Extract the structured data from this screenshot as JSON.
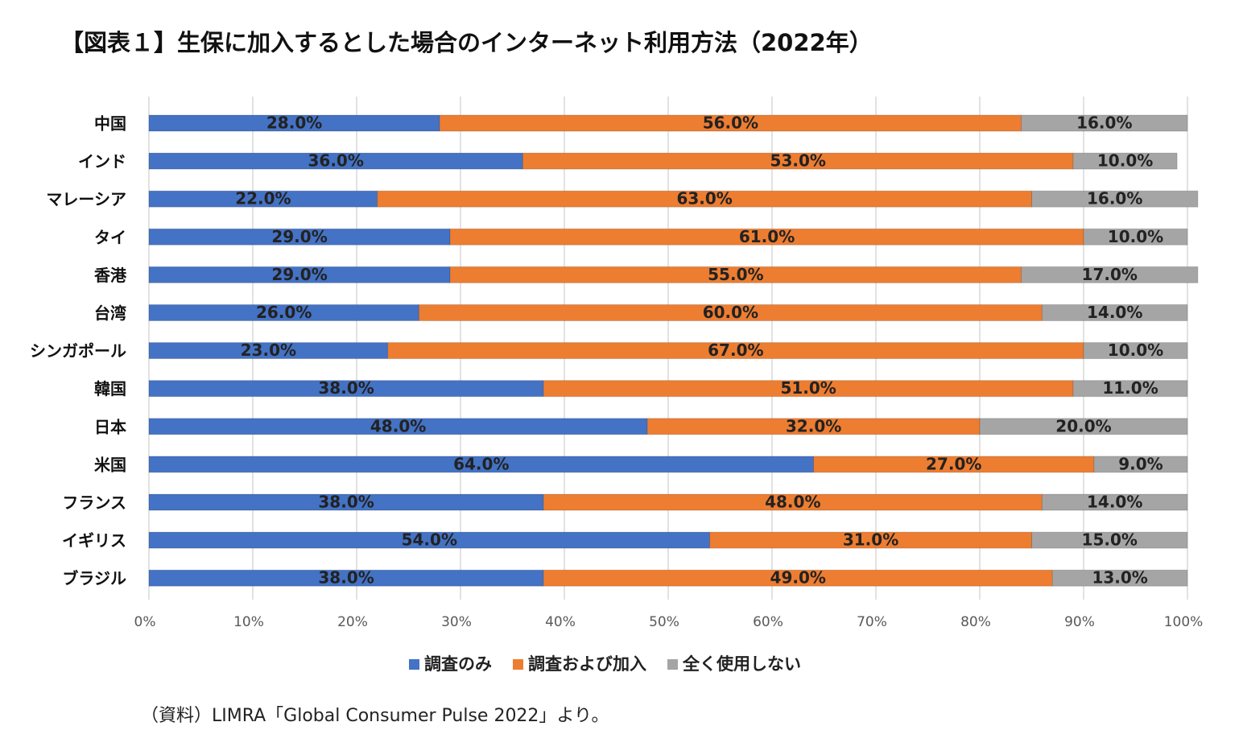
{
  "chart_data": {
    "type": "stacked-bar-horizontal",
    "title": "【図表１】生保に加入するとした場合のインターネット利用方法（2022年）",
    "categories": [
      "中国",
      "インド",
      "マレーシア",
      "タイ",
      "香港",
      "台湾",
      "シンガポール",
      "韓国",
      "日本",
      "米国",
      "フランス",
      "イギリス",
      "ブラジル"
    ],
    "series": [
      {
        "name": "調査のみ",
        "color": "#4472c4",
        "values": [
          28,
          36,
          22,
          29,
          29,
          26,
          23,
          38,
          48,
          64,
          38,
          54,
          38
        ],
        "value_labels": [
          "28.0%",
          "36.0%",
          "22.0%",
          "29.0%",
          "29.0%",
          "26.0%",
          "23.0%",
          "38.0%",
          "48.0%",
          "64.0%",
          "38.0%",
          "54.0%",
          "38.0%"
        ]
      },
      {
        "name": "調査および加入",
        "color": "#ed7d31",
        "values": [
          56,
          53,
          63,
          61,
          55,
          60,
          67,
          51,
          32,
          27,
          48,
          31,
          49
        ],
        "value_labels": [
          "56.0%",
          "53.0%",
          "63.0%",
          "61.0%",
          "55.0%",
          "60.0%",
          "67.0%",
          "51.0%",
          "32.0%",
          "27.0%",
          "48.0%",
          "31.0%",
          "49.0%"
        ]
      },
      {
        "name": "全く使用しない",
        "color": "#a5a5a5",
        "values": [
          16,
          10,
          16,
          10,
          17,
          14,
          10,
          11,
          20,
          9,
          14,
          15,
          13
        ],
        "value_labels": [
          "16.0%",
          "10.0%",
          "16.0%",
          "10.0%",
          "17.0%",
          "14.0%",
          "10.0%",
          "11.0%",
          "20.0%",
          "9.0%",
          "14.0%",
          "15.0%",
          "13.0%"
        ]
      }
    ],
    "xlim": [
      0,
      100
    ],
    "xticks": [
      {
        "value": 0,
        "label": "0%"
      },
      {
        "value": 10,
        "label": "10%"
      },
      {
        "value": 20,
        "label": "20%"
      },
      {
        "value": 30,
        "label": "30%"
      },
      {
        "value": 40,
        "label": "40%"
      },
      {
        "value": 50,
        "label": "50%"
      },
      {
        "value": 60,
        "label": "60%"
      },
      {
        "value": 70,
        "label": "70%"
      },
      {
        "value": 80,
        "label": "80%"
      },
      {
        "value": 90,
        "label": "90%"
      },
      {
        "value": 100,
        "label": "100%"
      }
    ],
    "grid": true,
    "legend": "bottom",
    "source": "（資料）LIMRA「Global Consumer Pulse 2022」より。"
  }
}
